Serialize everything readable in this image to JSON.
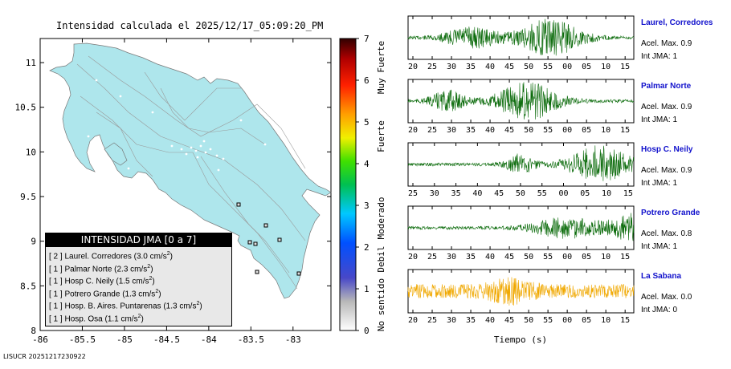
{
  "map": {
    "title": "Intensidad calculada el 2025/12/17_05:09:20_PM",
    "footer": "LISUCR 20251217230922",
    "x_ticks": [
      "-86",
      "-85.5",
      "-85",
      "-84.5",
      "-84",
      "-83.5",
      "-83"
    ],
    "y_ticks": [
      "8",
      "8.5",
      "9",
      "9.5",
      "10",
      "10.5",
      "11"
    ],
    "land_color": "#aee6ec"
  },
  "colorbar": {
    "ticks": [
      "0",
      "1",
      "2",
      "3",
      "4",
      "5",
      "6",
      "7"
    ],
    "labels": [
      "No sentido",
      "Debil",
      "Moderado",
      "Fuerte",
      "Muy Fuerte"
    ]
  },
  "legend": {
    "title": "INTENSIDAD JMA [0 a 7]",
    "items": [
      {
        "int": "[ 2 ]",
        "name": "Laurel. Corredores",
        "acc": "(3.0 cm/s",
        "sup": "2",
        "close": ")"
      },
      {
        "int": "[ 1 ]",
        "name": "Palmar Norte",
        "acc": "(2.3 cm/s",
        "sup": "2",
        "close": ")"
      },
      {
        "int": "[ 1 ]",
        "name": "Hosp C. Neily",
        "acc": "(1.5 cm/s",
        "sup": "2",
        "close": ")"
      },
      {
        "int": "[ 1 ]",
        "name": "Potrero Grande",
        "acc": "(1.3 cm/s",
        "sup": "2",
        "close": ")"
      },
      {
        "int": "[ 1 ]",
        "name": "Hosp. B. Aires. Puntarenas",
        "acc": "(1.3 cm/s",
        "sup": "2",
        "close": ")"
      },
      {
        "int": "[ 1 ]",
        "name": "Hosp. Osa",
        "acc": "(1.1 cm/s",
        "sup": "2",
        "close": ")"
      }
    ]
  },
  "traces": [
    {
      "name": "Laurel, Corredores",
      "acel": "Acel. Max. 0.9",
      "jma": "Int JMA: 1",
      "color": "#0b6b0b",
      "ticks": [
        "20",
        "25",
        "30",
        "35",
        "40",
        "45",
        "50",
        "55",
        "00",
        "05",
        "10",
        "15"
      ]
    },
    {
      "name": "Palmar Norte",
      "acel": "Acel. Max. 0.9",
      "jma": "Int JMA: 1",
      "color": "#0b6b0b",
      "ticks": [
        "20",
        "25",
        "30",
        "35",
        "40",
        "45",
        "50",
        "55",
        "00",
        "05",
        "10",
        "15"
      ]
    },
    {
      "name": "Hosp C. Neily",
      "acel": "Acel. Max. 0.9",
      "jma": "Int JMA: 1",
      "color": "#0b6b0b",
      "ticks": [
        "25",
        "30",
        "35",
        "40",
        "45",
        "50",
        "55",
        "00",
        "05",
        "10",
        "15"
      ]
    },
    {
      "name": "Potrero Grande",
      "acel": "Acel. Max. 0.8",
      "jma": "Int JMA: 1",
      "color": "#0b6b0b",
      "ticks": [
        "20",
        "25",
        "30",
        "35",
        "40",
        "45",
        "50",
        "55",
        "00",
        "05",
        "10",
        "15"
      ]
    },
    {
      "name": "La Sabana",
      "acel": "Acel. Max. 0.0",
      "jma": "Int JMA: 0",
      "color": "#f0a800",
      "ticks": [
        "20",
        "25",
        "30",
        "35",
        "40",
        "45",
        "50",
        "55",
        "00",
        "05",
        "10",
        "15"
      ]
    }
  ],
  "time_label": "Tiempo (s)"
}
